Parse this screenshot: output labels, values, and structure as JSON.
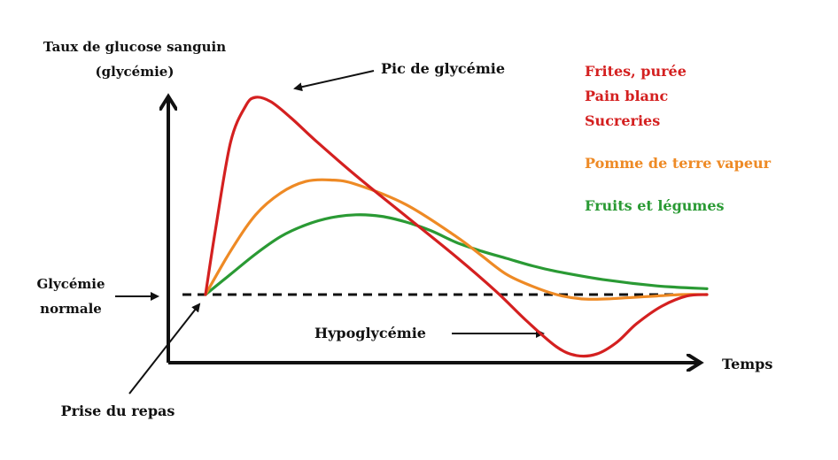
{
  "chart_data": {
    "type": "line",
    "ylabel": [
      "Taux de glucose sanguin",
      "(glycémie)"
    ],
    "xlabel": "Temps",
    "annotations": {
      "peak": "Pic de glycémie",
      "normal": [
        "Glycémie",
        "normale"
      ],
      "hypo": "Hypoglycémie",
      "meal": "Prise du repas"
    },
    "baseline": 0,
    "xlim": [
      0,
      100
    ],
    "ylim": [
      -0.6,
      1.6
    ],
    "series": [
      {
        "name": "Frites, purée / Pain blanc / Sucreries",
        "color": "#d42020",
        "x": [
          0,
          2,
          5,
          8,
          10,
          13,
          17,
          22,
          30,
          40,
          50,
          58,
          64,
          70,
          74,
          78,
          82,
          86,
          91,
          96,
          100
        ],
        "y": [
          0,
          0.45,
          1.05,
          1.3,
          1.36,
          1.33,
          1.22,
          1.06,
          0.82,
          0.54,
          0.26,
          0.02,
          -0.18,
          -0.36,
          -0.42,
          -0.41,
          -0.33,
          -0.2,
          -0.08,
          -0.01,
          0
        ]
      },
      {
        "name": "Pomme de terre vapeur",
        "color": "#ee8a25",
        "x": [
          0,
          5,
          10,
          15,
          20,
          25,
          30,
          40,
          50,
          55,
          60,
          65,
          70,
          75,
          80,
          85,
          90,
          95,
          100
        ],
        "y": [
          0,
          0.3,
          0.55,
          0.7,
          0.78,
          0.79,
          0.76,
          0.62,
          0.4,
          0.27,
          0.14,
          0.06,
          0.0,
          -0.03,
          -0.03,
          -0.02,
          -0.01,
          0.0,
          0.0
        ]
      },
      {
        "name": "Fruits et légumes",
        "color": "#2a9a34",
        "x": [
          0,
          5,
          10,
          15,
          20,
          25,
          30,
          35,
          40,
          45,
          50,
          55,
          60,
          65,
          70,
          80,
          90,
          100
        ],
        "y": [
          0,
          0.14,
          0.28,
          0.4,
          0.48,
          0.53,
          0.55,
          0.54,
          0.5,
          0.44,
          0.36,
          0.3,
          0.25,
          0.2,
          0.16,
          0.1,
          0.06,
          0.04
        ]
      }
    ],
    "legend": [
      {
        "text": "Frites, purée",
        "color": "#d42020"
      },
      {
        "text": "Pain blanc",
        "color": "#d42020"
      },
      {
        "text": "Sucreries",
        "color": "#d42020"
      },
      {
        "text": "Pomme de terre vapeur",
        "color": "#ee8a25"
      },
      {
        "text": "Fruits et légumes",
        "color": "#2a9a34"
      }
    ]
  }
}
